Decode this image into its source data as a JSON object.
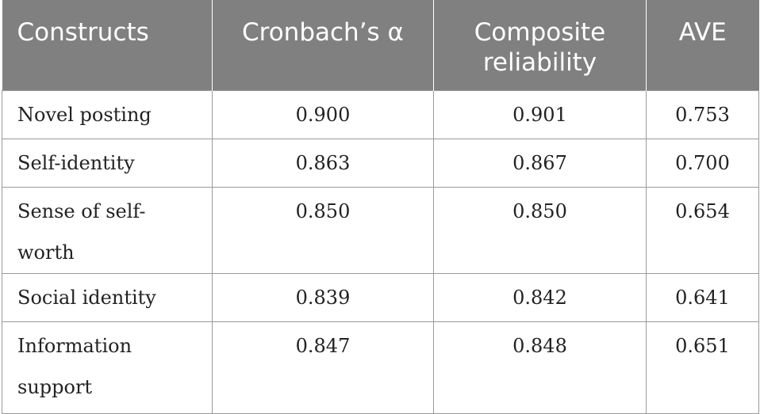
{
  "table": {
    "headers": {
      "constructs": "Constructs",
      "cronbach": "Cronbach’s α",
      "composite": "Composite reliability",
      "ave": "AVE"
    },
    "rows": [
      {
        "construct": "Novel posting",
        "cronbach": "0.900",
        "composite": "0.901",
        "ave": "0.753"
      },
      {
        "construct": "Self-identity",
        "cronbach": "0.863",
        "composite": "0.867",
        "ave": "0.700"
      },
      {
        "construct": "Sense of self-worth",
        "cronbach": "0.850",
        "composite": "0.850",
        "ave": "0.654"
      },
      {
        "construct": "Social identity",
        "cronbach": "0.839",
        "composite": "0.842",
        "ave": "0.641"
      },
      {
        "construct": "Information support",
        "cronbach": "0.847",
        "composite": "0.848",
        "ave": "0.651"
      }
    ]
  },
  "colors": {
    "header_bg": "#808080",
    "header_text": "#ffffff",
    "grid_line": "#9a9a9a",
    "body_text": "#222222"
  }
}
